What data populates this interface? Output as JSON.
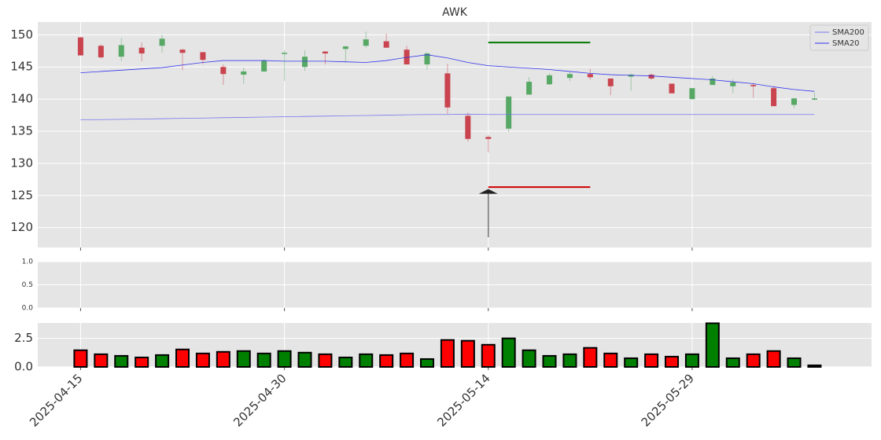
{
  "chart_data": [
    {
      "type": "candlestick",
      "title": "AWK",
      "open": [
        149.6,
        148.3,
        146.6,
        148.0,
        148.3,
        147.7,
        147.3,
        145.0,
        143.8,
        144.3,
        147.1,
        145.0,
        147.4,
        147.8,
        148.3,
        149.0,
        147.7,
        145.4,
        144.0,
        137.4,
        134.1,
        135.4,
        140.7,
        142.3,
        143.3,
        143.9,
        143.2,
        143.5,
        143.8,
        142.4,
        140.0,
        142.2,
        142.0,
        142.2,
        141.7,
        139.1,
        140.0
      ],
      "high": [
        149.7,
        148.5,
        149.5,
        148.8,
        150.0,
        147.8,
        147.3,
        145.4,
        144.9,
        146.2,
        147.6,
        147.6,
        147.5,
        148.3,
        150.5,
        150.2,
        148.3,
        147.3,
        145.5,
        137.9,
        134.4,
        140.4,
        143.4,
        144.0,
        144.2,
        144.7,
        143.2,
        144.0,
        144.0,
        142.4,
        141.7,
        143.6,
        143.1,
        142.5,
        142.0,
        140.2,
        141.0
      ],
      "low": [
        146.8,
        146.3,
        145.9,
        145.9,
        147.2,
        144.5,
        145.4,
        142.2,
        142.4,
        144.2,
        142.8,
        144.4,
        145.4,
        145.7,
        148.0,
        148.0,
        145.4,
        144.6,
        137.7,
        133.4,
        131.7,
        134.9,
        140.7,
        142.2,
        142.8,
        143.0,
        140.6,
        141.3,
        143.0,
        140.9,
        139.9,
        142.2,
        140.9,
        140.2,
        138.9,
        138.6,
        139.8
      ],
      "close": [
        146.8,
        146.5,
        148.4,
        147.1,
        149.4,
        147.2,
        146.1,
        143.9,
        144.3,
        146.0,
        147.2,
        146.6,
        147.1,
        148.2,
        149.3,
        148.0,
        145.4,
        147.1,
        138.7,
        133.8,
        133.8,
        140.4,
        142.7,
        143.7,
        143.9,
        143.4,
        142.0,
        143.8,
        143.2,
        140.9,
        141.7,
        143.2,
        142.6,
        142.0,
        138.9,
        140.1,
        140.1
      ],
      "up_color": "#57a865",
      "down_color": "#c9444f",
      "series": [
        {
          "name": "SMA200",
          "color": "#7777ee",
          "values": [
            136.8,
            136.8,
            136.85,
            136.9,
            136.95,
            137.0,
            137.05,
            137.1,
            137.15,
            137.2,
            137.25,
            137.3,
            137.35,
            137.4,
            137.45,
            137.5,
            137.55,
            137.6,
            137.6,
            137.65,
            137.6,
            137.6,
            137.6,
            137.6,
            137.6,
            137.6,
            137.6,
            137.6,
            137.6,
            137.6,
            137.6,
            137.6,
            137.6,
            137.6,
            137.6,
            137.6,
            137.6
          ]
        },
        {
          "name": "SMA20",
          "color": "#3333ee",
          "values": [
            144.1,
            144.3,
            144.5,
            144.7,
            144.9,
            145.3,
            145.7,
            146.0,
            146.0,
            146.0,
            145.9,
            145.9,
            145.9,
            145.8,
            145.7,
            146.0,
            146.5,
            146.9,
            146.4,
            145.7,
            145.2,
            145.0,
            144.8,
            144.6,
            144.3,
            144.0,
            143.8,
            143.7,
            143.6,
            143.4,
            143.2,
            143.0,
            142.7,
            142.4,
            141.9,
            141.5,
            141.2
          ]
        }
      ],
      "hlines": [
        {
          "value": 148.8,
          "x0": 20,
          "x1": 25,
          "color": "#007700"
        },
        {
          "value": 126.3,
          "x0": 20,
          "x1": 25,
          "color": "#cc0000"
        }
      ],
      "arrow": {
        "x": 20,
        "y0": 118.5,
        "y1": 126.0,
        "color": "#222222"
      },
      "xlim": [
        -2.1,
        38.8
      ],
      "xticks": [
        0,
        10,
        20,
        30
      ],
      "ylim": [
        116.9,
        152
      ],
      "yticks": [
        120,
        125,
        130,
        135,
        140,
        145,
        150
      ],
      "grid": true,
      "legend": "upper right"
    },
    {
      "type": "empty",
      "ylim": [
        0,
        1
      ],
      "yticks": [
        {
          "value": 0,
          "label": "0.0"
        },
        {
          "value": 0.5,
          "label": "0.5"
        },
        {
          "value": 1,
          "label": "1.0"
        }
      ],
      "xticks": [
        0,
        10,
        20,
        30
      ],
      "grid": true
    },
    {
      "type": "bar",
      "values": [
        1.46,
        1.11,
        0.97,
        0.83,
        1.04,
        1.53,
        1.18,
        1.32,
        1.39,
        1.18,
        1.39,
        1.25,
        1.11,
        0.83,
        1.11,
        1.04,
        1.18,
        0.69,
        2.36,
        2.29,
        1.94,
        2.5,
        1.46,
        0.97,
        1.11,
        1.67,
        1.18,
        0.76,
        1.11,
        0.9,
        1.11,
        3.82,
        0.76,
        1.11,
        1.39,
        0.76,
        0.14
      ],
      "colors": [
        "#ff0000",
        "#ff0000",
        "#008000",
        "#ff0000",
        "#008000",
        "#ff0000",
        "#ff0000",
        "#ff0000",
        "#008000",
        "#008000",
        "#008000",
        "#008000",
        "#ff0000",
        "#008000",
        "#008000",
        "#ff0000",
        "#ff0000",
        "#008000",
        "#ff0000",
        "#ff0000",
        "#ff0000",
        "#008000",
        "#008000",
        "#008000",
        "#008000",
        "#ff0000",
        "#ff0000",
        "#008000",
        "#ff0000",
        "#ff0000",
        "#008000",
        "#008000",
        "#008000",
        "#ff0000",
        "#ff0000",
        "#008000",
        "#000000"
      ],
      "ylim": [
        0,
        3.85
      ],
      "yticks": [
        {
          "value": 0,
          "label": "0.0"
        },
        2.5
      ],
      "xticks": [
        {
          "value": 0,
          "label": "2025-04-15"
        },
        {
          "value": 10,
          "label": "2025-04-30"
        },
        {
          "value": 20,
          "label": "2025-05-14"
        },
        {
          "value": 30,
          "label": "2025-05-29"
        }
      ],
      "grid": true
    }
  ]
}
